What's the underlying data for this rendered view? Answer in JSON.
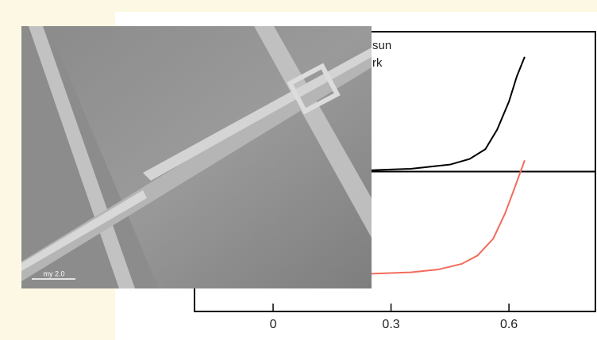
{
  "chart_data": {
    "type": "line",
    "legend_texts": [
      "sun",
      "rk"
    ],
    "scale_bar": "my 2.0",
    "xlim": [
      -0.2,
      0.82
    ],
    "ylim": [
      -1,
      1
    ],
    "xticks": [
      0,
      0.3,
      0.6
    ],
    "series": [
      {
        "name": "sun",
        "color": "#000000",
        "x": [
          0.25,
          0.35,
          0.45,
          0.5,
          0.54,
          0.57,
          0.6,
          0.62,
          0.64
        ],
        "values": [
          0.01,
          0.02,
          0.05,
          0.09,
          0.16,
          0.3,
          0.5,
          0.68,
          0.82
        ]
      },
      {
        "name": "rk",
        "color": "#f26b5b",
        "x": [
          0.25,
          0.35,
          0.42,
          0.48,
          0.52,
          0.56,
          0.59,
          0.61,
          0.64
        ],
        "values": [
          -0.73,
          -0.72,
          -0.7,
          -0.66,
          -0.6,
          -0.48,
          -0.3,
          -0.15,
          0.08
        ]
      }
    ]
  }
}
